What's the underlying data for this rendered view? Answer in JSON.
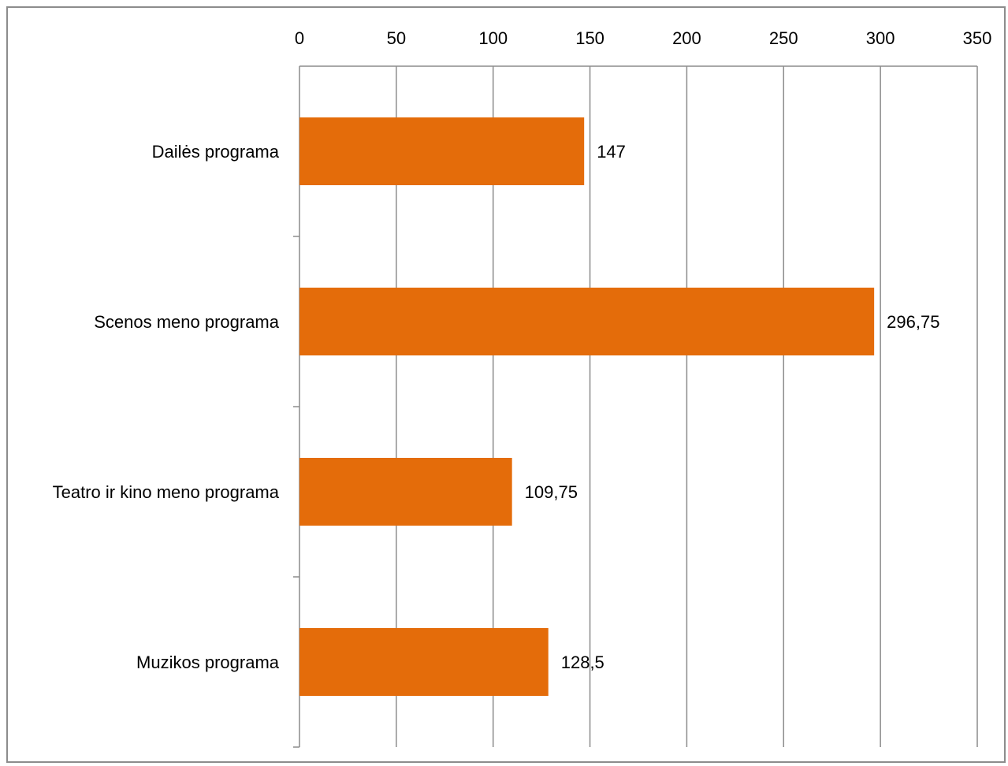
{
  "chart_data": {
    "type": "bar",
    "orientation": "horizontal",
    "categories": [
      "Dailės programa",
      "Scenos meno programa",
      "Teatro ir kino meno programa",
      "Muzikos programa"
    ],
    "values": [
      147,
      296.75,
      109.75,
      128.5
    ],
    "data_labels": [
      "147",
      "296,75",
      "109,75",
      "128,5"
    ],
    "x_ticks": [
      0,
      50,
      100,
      150,
      200,
      250,
      300,
      350
    ],
    "x_tick_labels": [
      "0",
      "50",
      "100",
      "150",
      "200",
      "250",
      "300",
      "350"
    ],
    "xlim": [
      0,
      350
    ],
    "x_axis_position": "top",
    "grid": true,
    "legend": "none",
    "bar_color": "#E46C0A",
    "title": "",
    "xlabel": "",
    "ylabel": ""
  }
}
